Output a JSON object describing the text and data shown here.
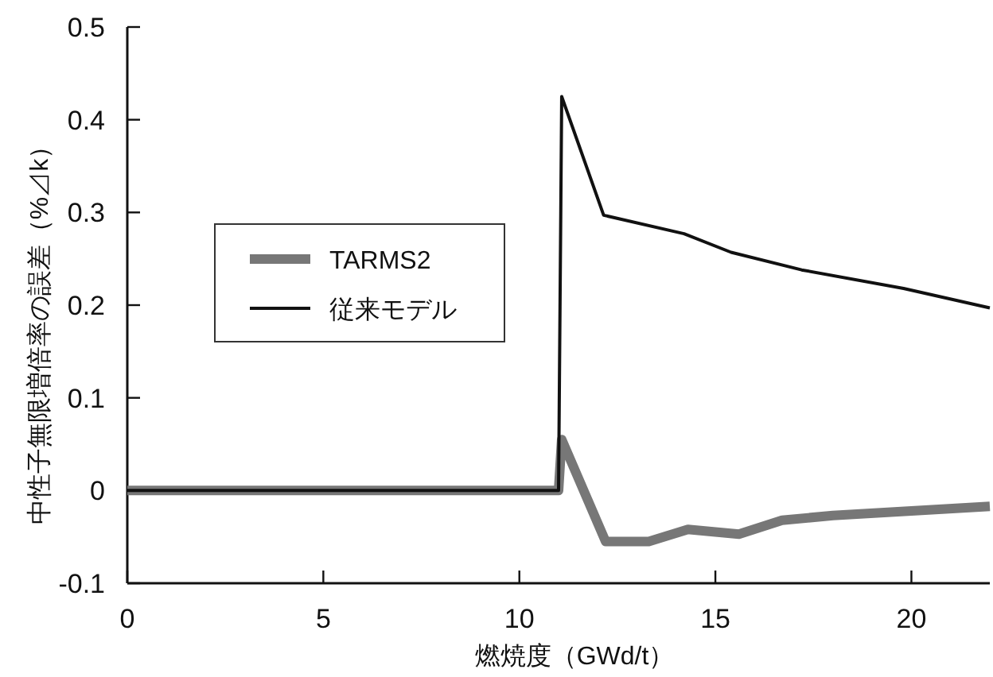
{
  "chart_data": {
    "type": "line",
    "xlabel": "燃焼度（GWd/t）",
    "ylabel": "中性子無限増倍率の誤差（%⊿k）",
    "xlim": [
      0,
      22
    ],
    "ylim": [
      -0.1,
      0.5
    ],
    "xticks": [
      0,
      5,
      10,
      15,
      20
    ],
    "yticks": [
      -0.1,
      0,
      0.1,
      0.2,
      0.3,
      0.4,
      0.5
    ],
    "grid": false,
    "legend": "top left",
    "marker": "none",
    "line_style": "solid",
    "series": [
      {
        "name": "TARMS2",
        "color": "#777777",
        "x": [
          0,
          11.0,
          11.08,
          12.2,
          13.3,
          14.3,
          15.6,
          16.7,
          18,
          20,
          22
        ],
        "values": [
          0,
          0,
          0.055,
          -0.055,
          -0.055,
          -0.042,
          -0.047,
          -0.032,
          -0.027,
          -0.022,
          -0.017
        ]
      },
      {
        "name": "従来モデル",
        "color": "#111111",
        "x": [
          0,
          11.0,
          11.08,
          12.15,
          14.2,
          15.4,
          17.2,
          19.8,
          22
        ],
        "values": [
          0,
          0,
          0.425,
          0.297,
          0.277,
          0.257,
          0.238,
          0.218,
          0.197
        ]
      }
    ]
  }
}
